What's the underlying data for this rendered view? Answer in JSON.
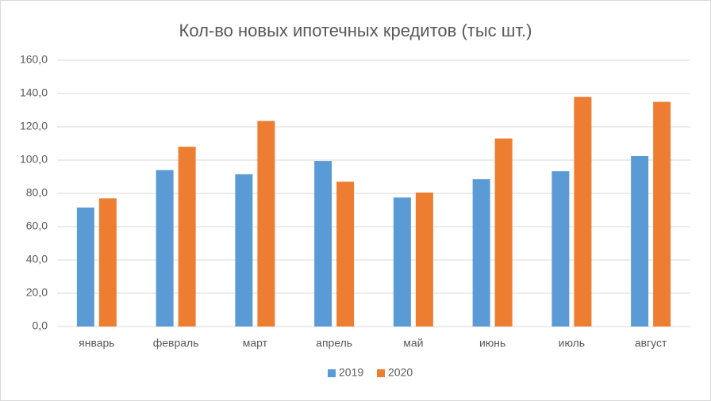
{
  "chart_data": {
    "type": "bar",
    "title": "Кол-во новых ипотечных кредитов (тыс шт.)",
    "categories": [
      "январь",
      "февраль",
      "март",
      "апрель",
      "май",
      "июнь",
      "июль",
      "август"
    ],
    "series": [
      {
        "name": "2019",
        "color": "#5b9bd5",
        "values": [
          71.5,
          94,
          91.5,
          99.5,
          77.5,
          88.5,
          93.3,
          102.4
        ]
      },
      {
        "name": "2020",
        "color": "#ed7d31",
        "values": [
          77,
          108,
          123.5,
          87,
          80.5,
          113,
          138,
          135
        ]
      }
    ],
    "ylim": [
      0,
      160
    ],
    "yticks": [
      {
        "value": 0,
        "label": "0,0"
      },
      {
        "value": 20,
        "label": "20,0"
      },
      {
        "value": 40,
        "label": "40,0"
      },
      {
        "value": 60,
        "label": "60,0"
      },
      {
        "value": 80,
        "label": "80,0"
      },
      {
        "value": 100,
        "label": "100,0"
      },
      {
        "value": 120,
        "label": "120,0"
      },
      {
        "value": 140,
        "label": "140,0"
      },
      {
        "value": 160,
        "label": "160,0"
      }
    ],
    "grid": true,
    "legend": "bottom"
  }
}
